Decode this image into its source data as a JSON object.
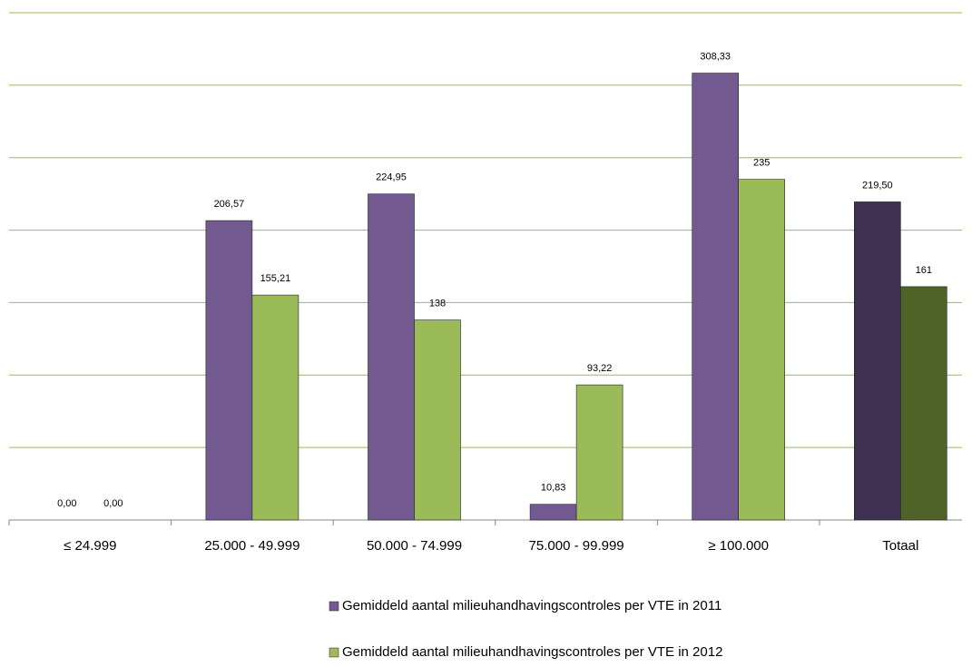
{
  "chart_data": {
    "type": "bar",
    "categories": [
      "≤ 24.999",
      "25.000 - 49.999",
      "50.000 - 74.999",
      "75.000 - 99.999",
      "≥ 100.000",
      "Totaal"
    ],
    "series": [
      {
        "name": "Gemiddeld aantal milieuhandhavingscontroles per VTE in 2011",
        "color": "#725a91",
        "colors": [
          "#725a91",
          "#725a91",
          "#725a91",
          "#725a91",
          "#725a91",
          "#3f3052"
        ],
        "values": [
          0,
          206.57,
          224.95,
          10.83,
          308.33,
          219.5
        ],
        "value_labels": [
          "0,00",
          "206,57",
          "224,95",
          "10,83",
          "308,33",
          "219,50"
        ]
      },
      {
        "name": "Gemiddeld aantal milieuhandhavingscontroles per VTE in 2012",
        "color": "#9bbb59",
        "colors": [
          "#9bbb59",
          "#9bbb59",
          "#9bbb59",
          "#9bbb59",
          "#9bbb59",
          "#4f6228"
        ],
        "values": [
          0,
          155.21,
          138,
          93.22,
          235,
          161
        ],
        "value_labels": [
          "0,00",
          "155,21",
          "138",
          "93,22",
          "235",
          "161"
        ]
      }
    ],
    "ylim": [
      0,
      350
    ],
    "yticks": [
      0,
      50,
      100,
      150,
      200,
      250,
      300,
      350
    ],
    "grid": true
  }
}
